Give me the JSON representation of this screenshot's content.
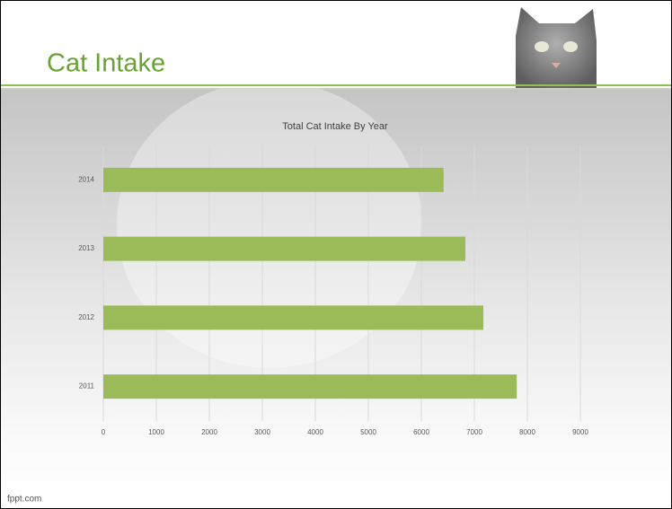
{
  "slide_title": "Cat Intake",
  "footer": "fppt.com",
  "chart_data": {
    "type": "hbar",
    "title": "Total Cat Intake By Year",
    "categories": [
      "2011",
      "2012",
      "2013",
      "2014"
    ],
    "values": [
      7800,
      7170,
      6830,
      6420
    ],
    "color": "#9bbb59",
    "xlim": [
      0,
      9000
    ],
    "xticks": [
      0,
      1000,
      2000,
      3000,
      4000,
      5000,
      6000,
      7000,
      8000,
      9000
    ],
    "grid": true
  }
}
